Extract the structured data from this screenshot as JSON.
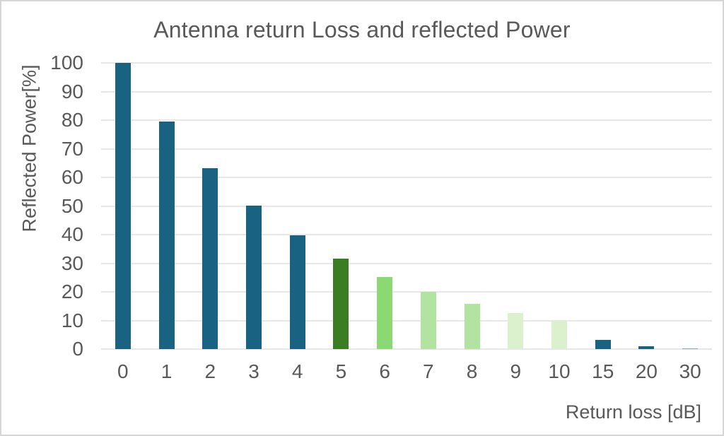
{
  "chart_data": {
    "type": "bar",
    "title": "Antenna return Loss and reflected Power",
    "xlabel": "Return loss [dB]",
    "ylabel": "Reflected Power[%]",
    "categories": [
      "0",
      "1",
      "2",
      "3",
      "4",
      "5",
      "6",
      "7",
      "8",
      "9",
      "10",
      "15",
      "20",
      "30"
    ],
    "values": [
      100,
      79.4,
      63.1,
      50.1,
      39.8,
      31.6,
      25.1,
      20,
      15.8,
      12.6,
      10,
      3.2,
      1,
      0.1
    ],
    "bar_colors": [
      "#1A6282",
      "#1A6282",
      "#1A6282",
      "#1A6282",
      "#1A6282",
      "#3B7D23",
      "#8BD973",
      "#B2E3A0",
      "#B2E3A0",
      "#DBF1CE",
      "#DBF1CE",
      "#1A6282",
      "#1A6282",
      "#1A6282"
    ],
    "yticks": [
      0,
      10,
      20,
      30,
      40,
      50,
      60,
      70,
      80,
      90,
      100
    ],
    "ylim": [
      0,
      100
    ],
    "grid": true,
    "legend_position": "none",
    "colors": {
      "text": "#595959",
      "gridline": "#E7E7E7",
      "background": "#FFFFFF",
      "border": "#D6D6D6",
      "blue": "#1A6282",
      "dark_green": "#3B7D23",
      "green": "#8BD973",
      "light_green": "#B2E3A0",
      "pale_green": "#DBF1CE"
    }
  }
}
